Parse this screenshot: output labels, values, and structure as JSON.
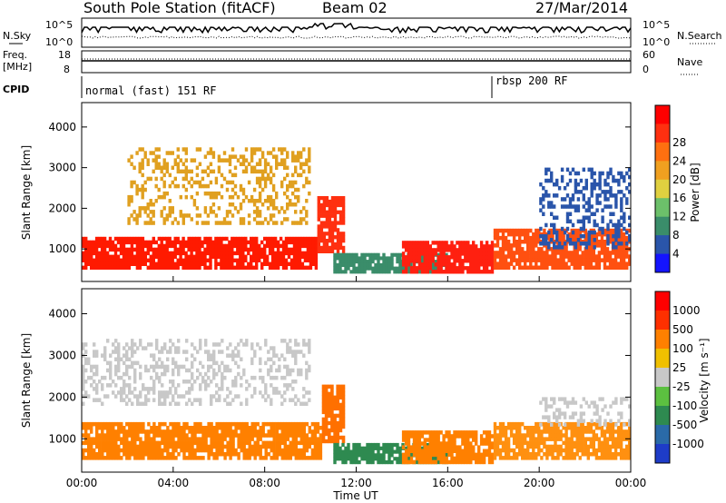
{
  "header": {
    "station": "South Pole Station (fitACF)",
    "beam": "Beam 02",
    "date": "27/Mar/2014"
  },
  "panels": {
    "nsky": {
      "left_label": "N.Sky",
      "right_label": "N.Search",
      "left_ticks": [
        "10^5",
        "10^0"
      ],
      "right_ticks": [
        "10^5",
        "10^0"
      ]
    },
    "freq": {
      "left_label_1": "Freq.",
      "left_label_2": "[MHz]",
      "left_ticks": [
        "18",
        "8"
      ],
      "right_label": "Nave",
      "right_ticks": [
        "60",
        "0"
      ]
    },
    "cpid": {
      "label": "CPID",
      "segments": [
        {
          "text": "normal (fast) 151 RF",
          "start_hour": 0
        },
        {
          "text": "rbsp 200 RF",
          "start_hour": 18.0
        }
      ]
    }
  },
  "chart_data": [
    {
      "type": "heatmap",
      "name": "power",
      "ylabel": "Slant Range [km]",
      "yticks": [
        1000,
        2000,
        3000,
        4000
      ],
      "ylim": [
        200,
        4600
      ],
      "xlim": [
        0,
        24
      ],
      "colorbar": {
        "label": "Power [dB]",
        "ticks": [
          "4",
          "8",
          "12",
          "16",
          "20",
          "24",
          "28"
        ],
        "colors": [
          "#1414ff",
          "#2a55aa",
          "#3a8d6a",
          "#6cc06a",
          "#e0d040",
          "#f0a020",
          "#ff7010",
          "#ff3010",
          "#ff0000"
        ]
      },
      "features": [
        {
          "hours": [
            0,
            10.3
          ],
          "range_km": [
            500,
            1300
          ],
          "color": "#ff1a00"
        },
        {
          "hours": [
            10.3,
            11.5
          ],
          "range_km": [
            900,
            2300
          ],
          "color": "#ff3010"
        },
        {
          "hours": [
            11.0,
            16.0
          ],
          "range_km": [
            400,
            900
          ],
          "color": "#3a8d6a"
        },
        {
          "hours": [
            14.0,
            18.0
          ],
          "range_km": [
            400,
            1200
          ],
          "color": "#ff2010"
        },
        {
          "hours": [
            18.0,
            24
          ],
          "range_km": [
            500,
            1500
          ],
          "color": "#ff5010"
        },
        {
          "hours": [
            2.0,
            10.0
          ],
          "range_km": [
            1600,
            3500
          ],
          "color": "#e0a020"
        },
        {
          "hours": [
            20.0,
            24
          ],
          "range_km": [
            1000,
            3000
          ],
          "color": "#2a55aa"
        }
      ]
    },
    {
      "type": "heatmap",
      "name": "velocity",
      "ylabel": "Slant Range [km]",
      "yticks": [
        1000,
        2000,
        3000,
        4000
      ],
      "ylim": [
        200,
        4600
      ],
      "xlim": [
        0,
        24
      ],
      "xticks": [
        "00:00",
        "04:00",
        "08:00",
        "12:00",
        "16:00",
        "20:00",
        "00:00"
      ],
      "xlabel": "Time UT",
      "colorbar": {
        "label": "Velocity [m s⁻¹]",
        "ticks": [
          "1000",
          "500",
          "100",
          "25",
          "-25",
          "-100",
          "-500",
          "-1000"
        ],
        "colors": [
          "#1e3cc8",
          "#2a6aa8",
          "#2e8a50",
          "#5cc040",
          "#c8c8c8",
          "#f0c000",
          "#ff8000",
          "#ff3000",
          "#ff0000"
        ]
      },
      "features": [
        {
          "hours": [
            0,
            10.5
          ],
          "range_km": [
            500,
            1400
          ],
          "color": "#ff8000"
        },
        {
          "hours": [
            10.5,
            11.5
          ],
          "range_km": [
            900,
            2300
          ],
          "color": "#ff7000"
        },
        {
          "hours": [
            11.0,
            16.0
          ],
          "range_km": [
            400,
            900
          ],
          "color": "#2e8a50"
        },
        {
          "hours": [
            14.0,
            18.0
          ],
          "range_km": [
            400,
            1200
          ],
          "color": "#ff8000"
        },
        {
          "hours": [
            18.0,
            24
          ],
          "range_km": [
            500,
            1400
          ],
          "color": "#ff9010"
        },
        {
          "hours": [
            0,
            10.0
          ],
          "range_km": [
            1800,
            3400
          ],
          "color": "#c8c8c8"
        },
        {
          "hours": [
            20.0,
            24
          ],
          "range_km": [
            1300,
            2000
          ],
          "color": "#c8c8c8"
        }
      ]
    }
  ]
}
